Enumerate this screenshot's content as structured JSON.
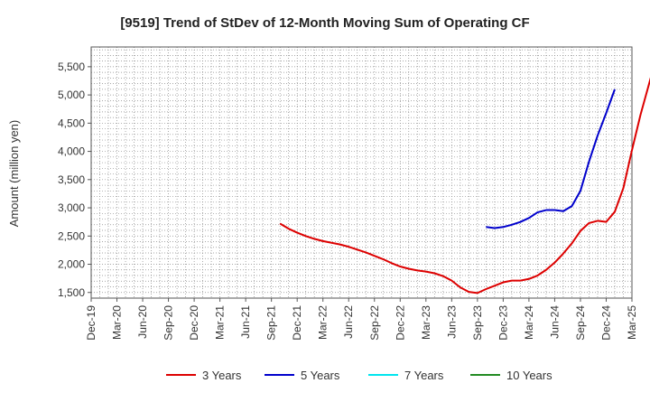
{
  "chart_data": {
    "type": "line",
    "title": "[9519]  Trend of StDev of 12-Month Moving Sum of Operating CF",
    "ylabel": "Amount (million yen)",
    "xlabel": "",
    "ylim": [
      1400,
      5850
    ],
    "y_ticks": [
      1500,
      2000,
      2500,
      3000,
      3500,
      4000,
      4500,
      5000,
      5500
    ],
    "y_tick_labels": [
      "1,500",
      "2,000",
      "2,500",
      "3,000",
      "3,500",
      "4,000",
      "4,500",
      "5,000",
      "5,500"
    ],
    "x_tick_labels": [
      "Dec-19",
      "Mar-20",
      "Jun-20",
      "Sep-20",
      "Dec-20",
      "Mar-21",
      "Jun-21",
      "Sep-21",
      "Dec-21",
      "Mar-22",
      "Jun-22",
      "Sep-22",
      "Dec-22",
      "Mar-23",
      "Jun-23",
      "Sep-23",
      "Dec-23",
      "Mar-24",
      "Jun-24",
      "Sep-24",
      "Dec-24",
      "Mar-25"
    ],
    "grid": true,
    "legend_position": "bottom",
    "series": [
      {
        "name": "3 Years",
        "color": "#dd0000",
        "start_month_index": 22,
        "values": [
          2720,
          2630,
          2560,
          2500,
          2450,
          2410,
          2380,
          2350,
          2310,
          2260,
          2210,
          2150,
          2090,
          2020,
          1960,
          1920,
          1890,
          1870,
          1840,
          1790,
          1710,
          1590,
          1510,
          1490,
          1560,
          1620,
          1680,
          1710,
          1710,
          1740,
          1800,
          1900,
          2030,
          2190,
          2370,
          2590,
          2730,
          2770,
          2750,
          2930,
          3350,
          4020,
          4650,
          5200,
          5750
        ]
      },
      {
        "name": "5 Years",
        "color": "#0000cc",
        "start_month_index": 46,
        "values": [
          2660,
          2640,
          2660,
          2700,
          2750,
          2820,
          2920,
          2960,
          2960,
          2940,
          3030,
          3300,
          3820,
          4280,
          4680,
          5100
        ]
      },
      {
        "name": "7 Years",
        "color": "#00e5ee",
        "start_month_index": 0,
        "values": []
      },
      {
        "name": "10 Years",
        "color": "#228b22",
        "start_month_index": 0,
        "values": []
      }
    ]
  }
}
